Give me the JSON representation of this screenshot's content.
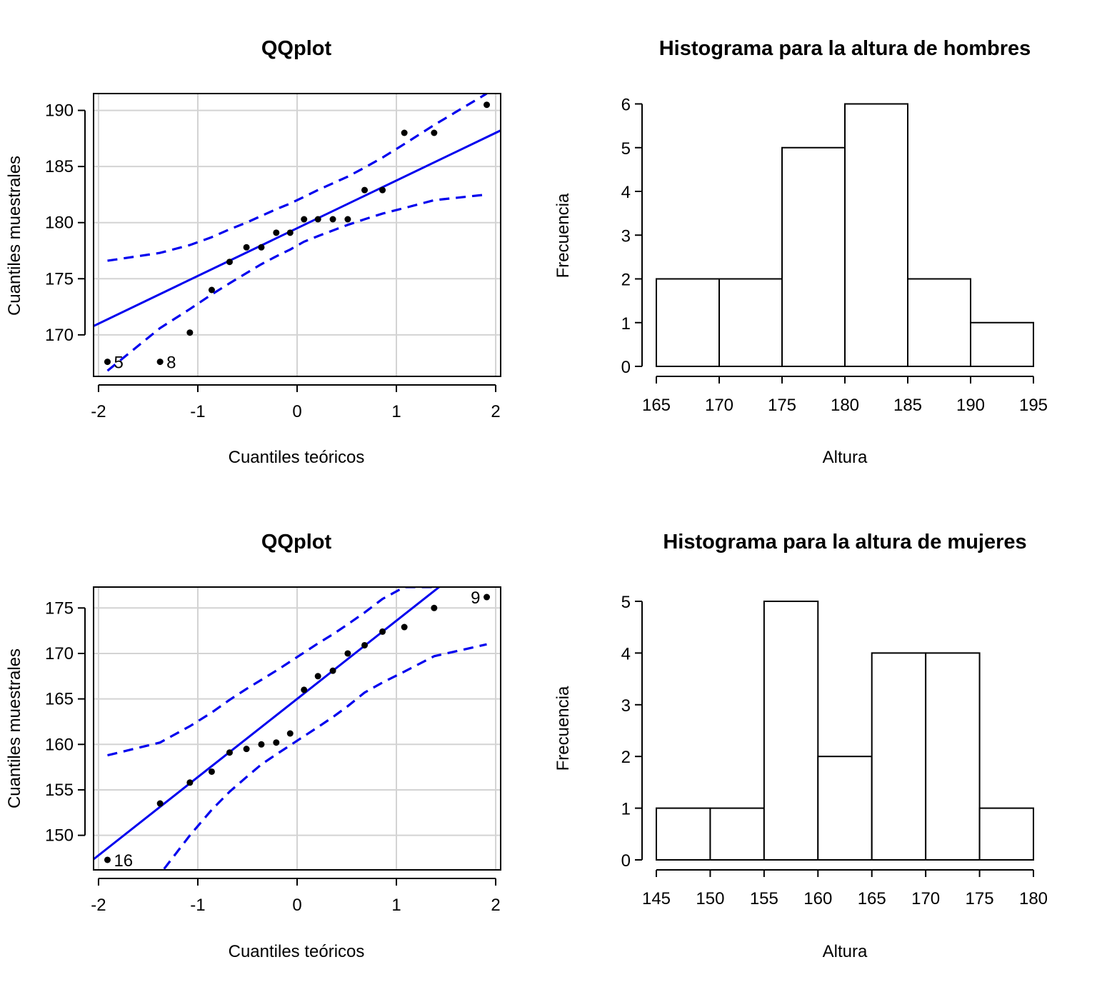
{
  "chart_data": [
    {
      "type": "scatter",
      "variant": "qqplot",
      "title": "QQplot",
      "xlabel": "Cuantiles teóricos",
      "ylabel": "Cuantiles muestrales",
      "xlim": [
        -2.05,
        2.05
      ],
      "ylim": [
        166.3,
        191.5
      ],
      "xticks": [
        -2,
        -1,
        0,
        1,
        2
      ],
      "yticks": [
        170,
        175,
        180,
        185,
        190
      ],
      "grid": true,
      "points": {
        "x": [
          -1.91,
          -1.38,
          -1.08,
          -0.86,
          -0.68,
          -0.51,
          -0.36,
          -0.21,
          -0.07,
          0.07,
          0.21,
          0.36,
          0.51,
          0.68,
          0.86,
          1.08,
          1.38,
          1.91
        ],
        "y": [
          167.6,
          167.6,
          170.2,
          174.0,
          176.5,
          177.8,
          177.8,
          179.1,
          179.1,
          180.3,
          180.3,
          180.3,
          180.3,
          182.9,
          182.9,
          188.0,
          188.0,
          190.5
        ]
      },
      "point_labels": [
        {
          "x": -1.91,
          "y": 167.6,
          "text": "5"
        },
        {
          "x": -1.38,
          "y": 167.6,
          "text": "8"
        }
      ],
      "ref_line": {
        "intercept": 179.5,
        "slope": 4.25,
        "color": "#0000ee"
      },
      "envelope_upper": {
        "x": [
          -1.91,
          -1.38,
          -1.08,
          -0.86,
          -0.68,
          -0.51,
          -0.36,
          -0.21,
          -0.07,
          0.07,
          0.21,
          0.36,
          0.51,
          0.68,
          0.86,
          1.08,
          1.38,
          1.91
        ],
        "y": [
          176.6,
          177.3,
          178.0,
          178.7,
          179.4,
          180.0,
          180.6,
          181.2,
          181.7,
          182.3,
          182.9,
          183.5,
          184.1,
          184.9,
          185.8,
          187.0,
          188.7,
          191.5
        ]
      },
      "envelope_lower": {
        "x": [
          -1.91,
          -1.38,
          -1.08,
          -0.86,
          -0.68,
          -0.51,
          -0.36,
          -0.21,
          -0.07,
          0.07,
          0.21,
          0.36,
          0.51,
          0.68,
          0.86,
          1.08,
          1.38,
          1.91
        ],
        "y": [
          166.8,
          170.6,
          172.3,
          173.6,
          174.6,
          175.5,
          176.3,
          177.0,
          177.6,
          178.3,
          178.8,
          179.3,
          179.8,
          180.3,
          180.8,
          181.3,
          182.0,
          182.5
        ]
      },
      "line_color": "#0000ee"
    },
    {
      "type": "bar",
      "variant": "histogram",
      "title": "Histograma para la altura de hombres",
      "xlabel": "Altura",
      "ylabel": "Frecuencia",
      "bin_edges": [
        165,
        170,
        175,
        180,
        185,
        190,
        195
      ],
      "counts": [
        2,
        2,
        5,
        6,
        2,
        1
      ],
      "xticks": [
        165,
        170,
        175,
        180,
        185,
        190,
        195
      ],
      "yticks": [
        0,
        1,
        2,
        3,
        4,
        5,
        6
      ],
      "ylim": [
        0,
        6.4
      ]
    },
    {
      "type": "scatter",
      "variant": "qqplot",
      "title": "QQplot",
      "xlabel": "Cuantiles teóricos",
      "ylabel": "Cuantiles muestrales",
      "xlim": [
        -2.05,
        2.05
      ],
      "ylim": [
        146.2,
        177.3
      ],
      "xticks": [
        -2,
        -1,
        0,
        1,
        2
      ],
      "yticks": [
        150,
        155,
        160,
        165,
        170,
        175
      ],
      "grid": true,
      "points": {
        "x": [
          -1.91,
          -1.38,
          -1.08,
          -0.86,
          -0.68,
          -0.51,
          -0.36,
          -0.21,
          -0.07,
          0.07,
          0.21,
          0.36,
          0.51,
          0.68,
          0.86,
          1.08,
          1.38,
          1.91
        ],
        "y": [
          147.3,
          153.5,
          155.8,
          157.0,
          159.1,
          159.5,
          160.0,
          160.2,
          161.2,
          166.0,
          167.5,
          168.1,
          170.0,
          170.9,
          172.4,
          172.9,
          175.0,
          176.2
        ]
      },
      "point_labels": [
        {
          "x": -1.91,
          "y": 147.3,
          "text": "16"
        },
        {
          "x": 1.91,
          "y": 176.2,
          "text": "9"
        }
      ],
      "ref_line": {
        "intercept": 165.0,
        "slope": 8.6,
        "color": "#0000ee"
      },
      "envelope_upper": {
        "x": [
          -1.91,
          -1.38,
          -1.08,
          -0.86,
          -0.68,
          -0.51,
          -0.36,
          -0.21,
          -0.07,
          0.07,
          0.21,
          0.36,
          0.51,
          0.68,
          0.86,
          1.08,
          1.38
        ],
        "y": [
          158.8,
          160.2,
          162.0,
          163.5,
          164.9,
          166.1,
          167.1,
          168.1,
          169.1,
          170.1,
          171.1,
          172.1,
          173.2,
          174.5,
          176.0,
          177.3,
          177.3
        ]
      },
      "envelope_lower": {
        "x": [
          -1.34,
          -1.08,
          -0.86,
          -0.68,
          -0.51,
          -0.36,
          -0.21,
          -0.07,
          0.07,
          0.21,
          0.36,
          0.51,
          0.68,
          0.86,
          1.08,
          1.38,
          1.91
        ],
        "y": [
          146.3,
          150.0,
          152.8,
          154.8,
          156.4,
          157.8,
          158.9,
          159.9,
          160.9,
          161.9,
          163.0,
          164.2,
          165.7,
          166.8,
          168.0,
          169.7,
          171.0
        ]
      },
      "line_color": "#0000ee"
    },
    {
      "type": "bar",
      "variant": "histogram",
      "title": "Histograma para la altura de mujeres",
      "xlabel": "Altura",
      "ylabel": "Frecuencia",
      "bin_edges": [
        145,
        150,
        155,
        160,
        165,
        170,
        175,
        180
      ],
      "counts": [
        1,
        1,
        5,
        2,
        4,
        4,
        1
      ],
      "xticks": [
        145,
        150,
        155,
        160,
        165,
        170,
        175,
        180
      ],
      "yticks": [
        0,
        1,
        2,
        3,
        4,
        5
      ],
      "ylim": [
        0,
        5.4
      ]
    }
  ]
}
